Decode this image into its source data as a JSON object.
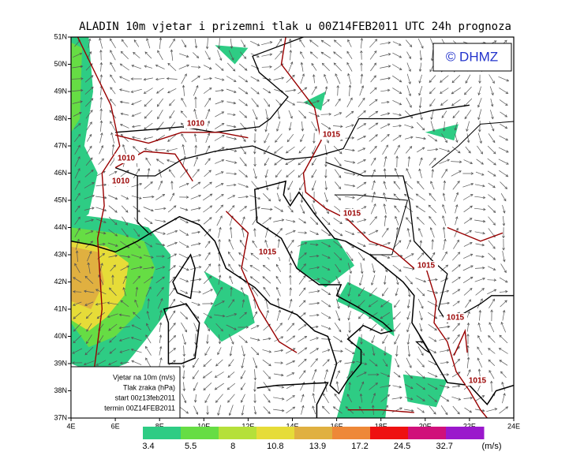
{
  "header": {
    "title": "ALADIN 10m vjetar i prizemni tlak u 00Z14FEB2011 UTC 24h prognoza"
  },
  "copyright": "© DHMZ",
  "axes": {
    "x_labels": [
      "4E",
      "6E",
      "8E",
      "10E",
      "12E",
      "14E",
      "16E",
      "18E",
      "20E",
      "22E",
      "24E"
    ],
    "y_labels": [
      "51N",
      "50N",
      "49N",
      "48N",
      "47N",
      "46N",
      "45N",
      "44N",
      "43N",
      "42N",
      "41N",
      "40N",
      "39N",
      "38N",
      "37N"
    ]
  },
  "isobar_labels": [
    "1010",
    "1010",
    "1010",
    "1015",
    "1015",
    "1015",
    "1015",
    "1015",
    "1015"
  ],
  "legend_box": {
    "lines": [
      "Vjetar na 10m (m/s)",
      "Tlak zraka (hPa)",
      "start 00z13feb2011",
      "termin 00Z14FEB2011"
    ]
  },
  "colorbar": {
    "labels": [
      "3.4",
      "5.5",
      "8",
      "10.8",
      "13.9",
      "17.2",
      "24.5",
      "32.7"
    ],
    "unit": "(m/s)",
    "colors": [
      "#2ecc84",
      "#66dd44",
      "#b5e03a",
      "#e6dc38",
      "#e0b040",
      "#ee8838",
      "#ee1111",
      "#d0107a",
      "#9a18cc"
    ]
  }
}
